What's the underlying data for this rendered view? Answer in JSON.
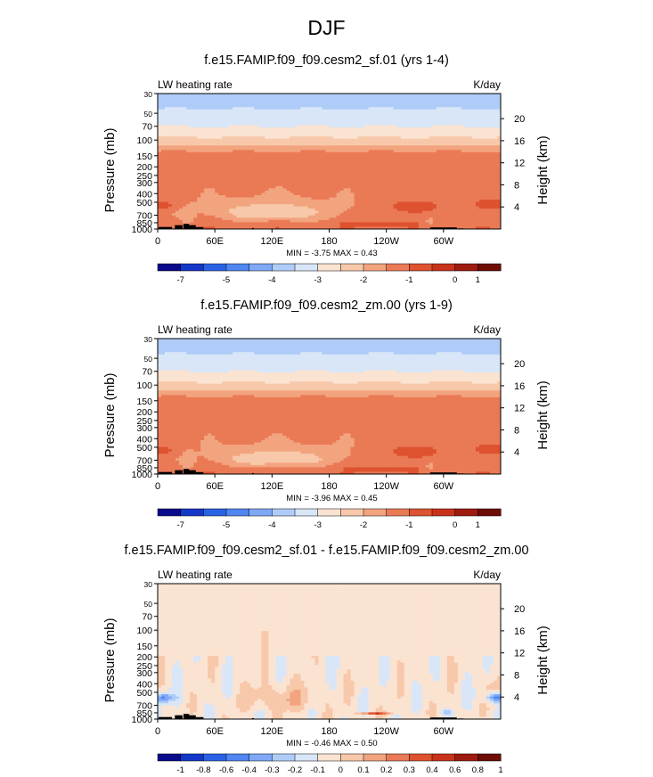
{
  "main_title": "DJF",
  "panels": [
    {
      "title": "f.e15.FAMIP.f09_f09.cesm2_sf.01 (yrs 1-4)",
      "left_label": "LW heating rate",
      "right_label": "K/day",
      "stats": "MIN = -3.75  MAX =  0.43",
      "ylabel": "Pressure (mb)",
      "y2label": "Height (km)",
      "x_ticks": [
        "0",
        "60E",
        "120E",
        "180",
        "120W",
        "60W"
      ],
      "y_ticks": [
        "1000",
        "850",
        "700",
        "500",
        "400",
        "300",
        "250",
        "200",
        "150",
        "100",
        "70",
        "50",
        "30"
      ],
      "y2_ticks": [
        "4",
        "8",
        "12",
        "16",
        "20"
      ],
      "colorbar_labels": [
        "-7",
        "-5",
        "-4",
        "-3",
        "-2",
        "-1",
        "0",
        "1"
      ]
    },
    {
      "title": "f.e15.FAMIP.f09_f09.cesm2_zm.00 (yrs 1-9)",
      "left_label": "LW heating rate",
      "right_label": "K/day",
      "stats": "MIN = -3.96  MAX =  0.45",
      "ylabel": "Pressure (mb)",
      "y2label": "Height (km)",
      "x_ticks": [
        "0",
        "60E",
        "120E",
        "180",
        "120W",
        "60W"
      ],
      "y_ticks": [
        "1000",
        "850",
        "700",
        "500",
        "400",
        "300",
        "250",
        "200",
        "150",
        "100",
        "70",
        "50",
        "30"
      ],
      "y2_ticks": [
        "4",
        "8",
        "12",
        "16",
        "20"
      ],
      "colorbar_labels": [
        "-7",
        "-5",
        "-4",
        "-3",
        "-2",
        "-1",
        "0",
        "1"
      ]
    },
    {
      "title": "f.e15.FAMIP.f09_f09.cesm2_sf.01 - f.e15.FAMIP.f09_f09.cesm2_zm.00",
      "left_label": "LW heating rate",
      "right_label": "K/day",
      "stats": "MIN = -0.46  MAX =  0.50",
      "ylabel": "Pressure (mb)",
      "y2label": "Height (km)",
      "x_ticks": [
        "0",
        "60E",
        "120E",
        "180",
        "120W",
        "60W"
      ],
      "y_ticks": [
        "1000",
        "850",
        "700",
        "500",
        "400",
        "300",
        "250",
        "200",
        "150",
        "100",
        "70",
        "50",
        "30"
      ],
      "y2_ticks": [
        "4",
        "8",
        "12",
        "16",
        "20"
      ],
      "colorbar_labels": [
        "-1",
        "-0.8",
        "-0.6",
        "-0.4",
        "-0.3",
        "-0.2",
        "-0.1",
        "0",
        "0.1",
        "0.2",
        "0.3",
        "0.4",
        "0.6",
        "0.8",
        "1"
      ]
    }
  ],
  "colors": {
    "full_field": [
      "#0a0a8c",
      "#1437c8",
      "#2a62e6",
      "#4f86f0",
      "#7fa8f6",
      "#afccf8",
      "#d8e6f8",
      "#fbe3d2",
      "#f8c8aa",
      "#f2a47f",
      "#ea7a55",
      "#de5230",
      "#c8321a",
      "#9e1b10",
      "#6e0c06"
    ],
    "difference": [
      "#0a0a8c",
      "#1437c8",
      "#2a62e6",
      "#4f86f0",
      "#7fa8f6",
      "#afccf8",
      "#d8e6f8",
      "#fbe3d2",
      "#f8c8aa",
      "#f2a47f",
      "#ea7a55",
      "#de5230",
      "#c8321a",
      "#9e1b10",
      "#6e0c06"
    ],
    "topography": "#000000"
  },
  "chart_data": [
    {
      "type": "heatmap",
      "title": "f.e15.FAMIP.f09_f09.cesm2_sf.01 (yrs 1-4)",
      "variable": "LW heating rate",
      "units": "K/day",
      "xlabel": "",
      "ylabel": "Pressure (mb)",
      "y2label": "Height (km)",
      "xlim": [
        0,
        360
      ],
      "ylim": [
        1000,
        30
      ],
      "y_scale": "log",
      "contour_levels": [
        -8,
        -7,
        -6,
        -5,
        -4,
        -3.5,
        -3,
        -2.5,
        -2,
        -1.5,
        -1,
        -0.5,
        0,
        0.5,
        1
      ],
      "min": -3.75,
      "max": 0.43,
      "features": [
        {
          "kind": "band",
          "p_range": [
            30,
            150
          ],
          "level": -3.5
        },
        {
          "kind": "blob",
          "lon": 120,
          "p": 650,
          "level": -2.5
        },
        {
          "kind": "blob",
          "lon": 270,
          "p": 560,
          "level": -0.5
        },
        {
          "kind": "blob",
          "lon": 350,
          "p": 520,
          "level": -0.5
        }
      ]
    },
    {
      "type": "heatmap",
      "title": "f.e15.FAMIP.f09_f09.cesm2_zm.00 (yrs 1-9)",
      "variable": "LW heating rate",
      "units": "K/day",
      "xlabel": "",
      "ylabel": "Pressure (mb)",
      "y2label": "Height (km)",
      "xlim": [
        0,
        360
      ],
      "ylim": [
        1000,
        30
      ],
      "y_scale": "log",
      "contour_levels": [
        -8,
        -7,
        -6,
        -5,
        -4,
        -3.5,
        -3,
        -2.5,
        -2,
        -1.5,
        -1,
        -0.5,
        0,
        0.5,
        1
      ],
      "min": -3.96,
      "max": 0.45,
      "features": [
        {
          "kind": "band",
          "p_range": [
            30,
            150
          ],
          "level": -3.5
        },
        {
          "kind": "blob",
          "lon": 125,
          "p": 680,
          "level": -2.5
        },
        {
          "kind": "blob",
          "lon": 270,
          "p": 560,
          "level": -0.5
        },
        {
          "kind": "blob",
          "lon": 350,
          "p": 520,
          "level": -0.5
        }
      ]
    },
    {
      "type": "heatmap",
      "title": "f.e15.FAMIP.f09_f09.cesm2_sf.01 - f.e15.FAMIP.f09_f09.cesm2_zm.00",
      "variable": "LW heating rate",
      "units": "K/day",
      "xlabel": "",
      "ylabel": "Pressure (mb)",
      "y2label": "Height (km)",
      "xlim": [
        0,
        360
      ],
      "ylim": [
        1000,
        30
      ],
      "y_scale": "log",
      "contour_levels": [
        -1,
        -0.8,
        -0.6,
        -0.4,
        -0.3,
        -0.2,
        -0.1,
        0,
        0.1,
        0.2,
        0.3,
        0.4,
        0.6,
        0.8,
        1
      ],
      "min": -0.46,
      "max": 0.5,
      "features": [
        {
          "kind": "blob",
          "lon": 5,
          "p": 580,
          "level": -0.4
        },
        {
          "kind": "blob",
          "lon": 355,
          "p": 580,
          "level": -0.4
        },
        {
          "kind": "blob",
          "lon": 230,
          "p": 870,
          "level": 0.5
        }
      ]
    }
  ]
}
